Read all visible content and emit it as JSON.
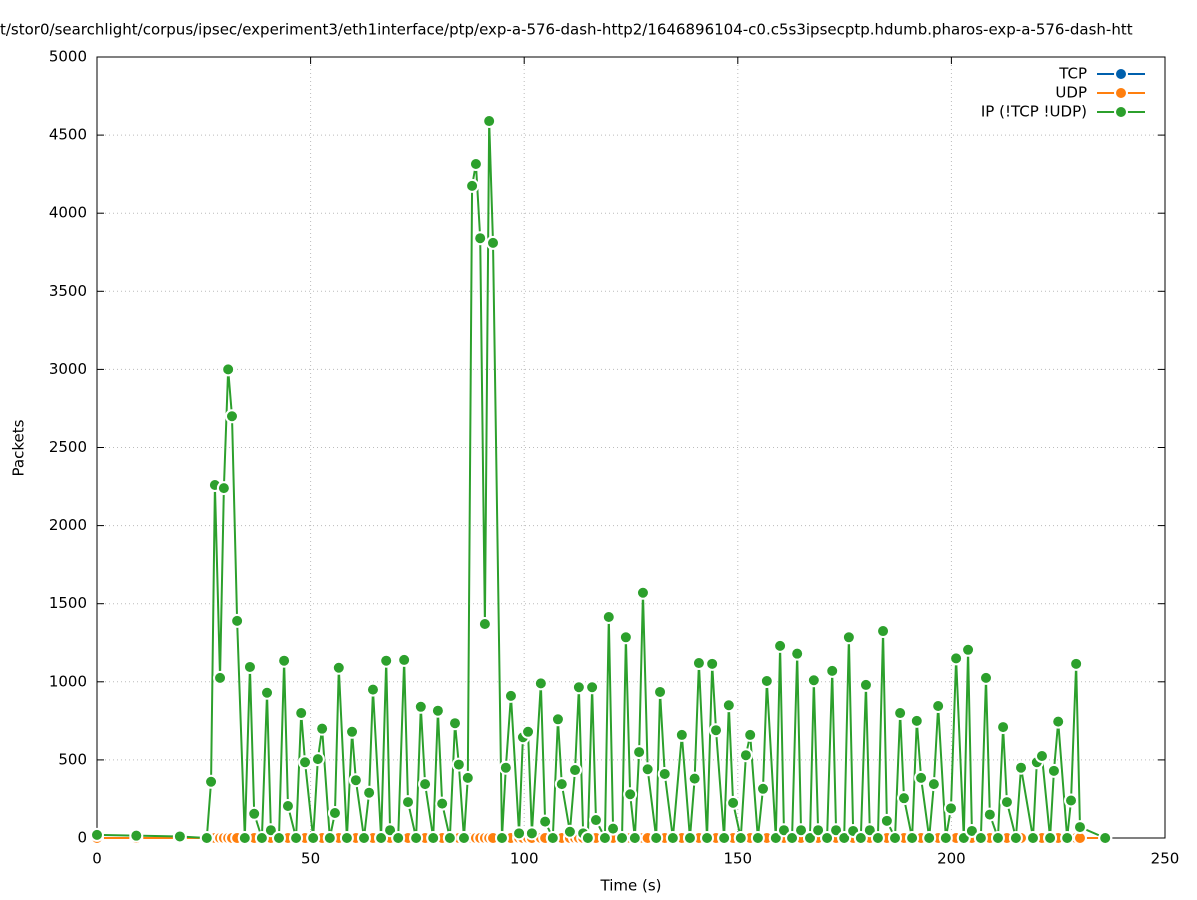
{
  "chart_data": {
    "type": "line",
    "title": "t/stor0/searchlight/corpus/ipsec/experiment3/eth1interface/ptp/exp-a-576-dash-http2/1646896104-c0.c5s3ipsecptp.hdumb.pharos-exp-a-576-dash-htt",
    "x_label": "Time (s)",
    "y_label": "Packets",
    "xlim": [
      0,
      250
    ],
    "xticks": [
      0,
      50,
      100,
      150,
      200,
      250
    ],
    "ylim": [
      0,
      5000
    ],
    "yticks": [
      0,
      500,
      1000,
      1500,
      2000,
      2500,
      3000,
      3500,
      4000,
      4500,
      5000
    ],
    "grid": true,
    "legend": "top-right",
    "x": [
      0,
      9.2,
      19.4,
      25.7,
      26.7,
      27.6,
      28.8,
      29.7,
      30.7,
      31.6,
      32.8,
      34.6,
      35.8,
      36.8,
      38.6,
      39.8,
      40.7,
      42.6,
      43.8,
      44.7,
      46.6,
      47.8,
      48.7,
      50.6,
      51.7,
      52.7,
      54.5,
      55.7,
      56.6,
      58.5,
      59.7,
      60.6,
      62.5,
      63.7,
      64.6,
      66.5,
      67.7,
      68.6,
      70.5,
      71.9,
      72.8,
      74.7,
      75.8,
      76.8,
      78.7,
      79.8,
      80.8,
      82.6,
      83.8,
      84.7,
      85.9,
      86.8,
      87.8,
      88.7,
      89.7,
      90.8,
      91.8,
      92.7,
      94.8,
      95.7,
      96.9,
      98.8,
      99.7,
      100.9,
      101.8,
      103.9,
      104.9,
      106.7,
      107.9,
      108.8,
      110.7,
      111.9,
      112.8,
      113.8,
      114.9,
      115.9,
      116.8,
      118.9,
      119.8,
      120.8,
      122.9,
      123.8,
      124.8,
      125.9,
      126.9,
      127.8,
      128.9,
      130.9,
      131.8,
      132.9,
      134.8,
      136.9,
      138.8,
      139.9,
      140.9,
      142.8,
      144.0,
      144.9,
      146.8,
      147.9,
      148.9,
      150.7,
      151.9,
      152.9,
      154.7,
      155.9,
      156.8,
      158.9,
      159.9,
      160.8,
      162.7,
      163.9,
      164.8,
      166.9,
      167.8,
      168.8,
      170.9,
      172.1,
      173.0,
      174.9,
      176.0,
      177.0,
      178.8,
      180.0,
      180.9,
      182.8,
      184.0,
      184.9,
      186.8,
      188.0,
      188.9,
      190.8,
      191.9,
      192.9,
      194.8,
      195.9,
      196.9,
      198.7,
      199.9,
      201.1,
      202.9,
      203.9,
      204.8,
      206.9,
      208.1,
      209.0,
      210.9,
      212.1,
      213.0,
      215.1,
      216.3,
      219.1,
      220.0,
      221.2,
      223.1,
      224.0,
      225.0,
      227.1,
      228.0,
      229.2,
      230.1,
      236.0
    ],
    "series": [
      {
        "name": "TCP",
        "color": "#0060ad",
        "values": [
          0,
          0,
          0,
          0,
          0,
          0,
          0,
          0,
          0,
          0,
          0,
          0,
          0,
          0,
          0,
          0,
          0,
          0,
          0,
          0,
          0,
          0,
          0,
          0,
          0,
          0,
          0,
          0,
          0,
          0,
          0,
          0,
          0,
          0,
          0,
          0,
          0,
          0,
          0,
          0,
          0,
          0,
          0,
          0,
          0,
          0,
          0,
          0,
          0,
          0,
          0,
          0,
          0,
          0,
          0,
          0,
          0,
          0,
          0,
          0,
          0,
          0,
          0,
          0,
          0,
          0,
          0,
          0,
          0,
          0,
          0,
          0,
          0,
          0,
          0,
          0,
          0,
          0,
          0,
          0,
          0,
          0,
          0,
          0,
          0,
          0,
          0,
          0,
          0,
          0,
          0,
          0,
          0,
          0,
          0,
          0,
          0,
          0,
          0,
          0,
          0,
          0,
          0,
          0,
          0,
          0,
          0,
          0,
          0,
          0,
          0,
          0,
          0,
          0,
          0,
          0,
          0,
          0,
          0,
          0,
          0,
          0,
          0,
          0,
          0,
          0,
          0,
          0,
          0,
          0,
          0,
          0,
          0,
          0,
          0,
          0,
          0,
          0,
          0,
          0,
          0,
          0,
          0,
          0,
          0,
          0,
          0,
          0,
          0,
          0,
          0,
          0,
          0,
          0,
          0,
          0,
          0,
          0,
          0,
          0,
          0,
          0
        ]
      },
      {
        "name": "UDP",
        "color": "#ff7f0e",
        "values": [
          0,
          0,
          0,
          0,
          0,
          0,
          0,
          0,
          0,
          0,
          0,
          0,
          0,
          0,
          0,
          0,
          0,
          0,
          0,
          0,
          0,
          0,
          0,
          0,
          0,
          0,
          0,
          0,
          0,
          0,
          0,
          0,
          0,
          0,
          0,
          0,
          0,
          0,
          0,
          0,
          0,
          0,
          0,
          0,
          0,
          0,
          0,
          0,
          0,
          0,
          0,
          0,
          0,
          0,
          0,
          0,
          0,
          0,
          0,
          0,
          0,
          0,
          0,
          0,
          0,
          0,
          0,
          0,
          0,
          0,
          0,
          0,
          0,
          0,
          0,
          0,
          0,
          0,
          0,
          0,
          0,
          0,
          0,
          0,
          0,
          0,
          0,
          0,
          0,
          0,
          0,
          0,
          0,
          0,
          0,
          0,
          0,
          0,
          0,
          0,
          0,
          0,
          0,
          0,
          0,
          0,
          0,
          0,
          0,
          0,
          0,
          0,
          0,
          0,
          0,
          0,
          0,
          0,
          0,
          0,
          0,
          0,
          0,
          0,
          0,
          0,
          0,
          0,
          0,
          0,
          0,
          0,
          0,
          0,
          0,
          0,
          0,
          0,
          0,
          0,
          0,
          0,
          0,
          0,
          0,
          0,
          0,
          0,
          0,
          0,
          0,
          0,
          0,
          0,
          0,
          0,
          0,
          0,
          0,
          0,
          0,
          0
        ]
      },
      {
        "name": "IP (!TCP  !UDP)",
        "color": "#2ca02c",
        "values": [
          20,
          15,
          10,
          0,
          360,
          2260,
          1025,
          2240,
          3000,
          2700,
          1390,
          0,
          1095,
          155,
          0,
          930,
          50,
          0,
          1135,
          205,
          0,
          800,
          485,
          0,
          505,
          700,
          0,
          160,
          1090,
          0,
          680,
          370,
          0,
          290,
          950,
          0,
          1135,
          50,
          0,
          1140,
          230,
          0,
          840,
          345,
          0,
          815,
          220,
          0,
          735,
          470,
          0,
          385,
          4175,
          4315,
          3840,
          1370,
          4590,
          3810,
          0,
          450,
          910,
          30,
          645,
          680,
          30,
          990,
          105,
          0,
          760,
          345,
          40,
          435,
          965,
          30,
          0,
          965,
          115,
          0,
          1415,
          60,
          0,
          1285,
          280,
          0,
          550,
          1570,
          440,
          0,
          935,
          410,
          0,
          660,
          0,
          380,
          1120,
          0,
          1115,
          690,
          0,
          850,
          225,
          0,
          530,
          660,
          0,
          315,
          1005,
          0,
          1230,
          50,
          0,
          1180,
          50,
          0,
          1010,
          50,
          0,
          1070,
          50,
          0,
          1285,
          45,
          0,
          980,
          50,
          0,
          1325,
          110,
          0,
          800,
          255,
          0,
          750,
          385,
          0,
          345,
          845,
          0,
          190,
          1150,
          0,
          1205,
          45,
          0,
          1025,
          150,
          0,
          710,
          230,
          0,
          450,
          0,
          485,
          525,
          0,
          430,
          745,
          0,
          240,
          1115,
          70,
          0
        ]
      }
    ]
  }
}
